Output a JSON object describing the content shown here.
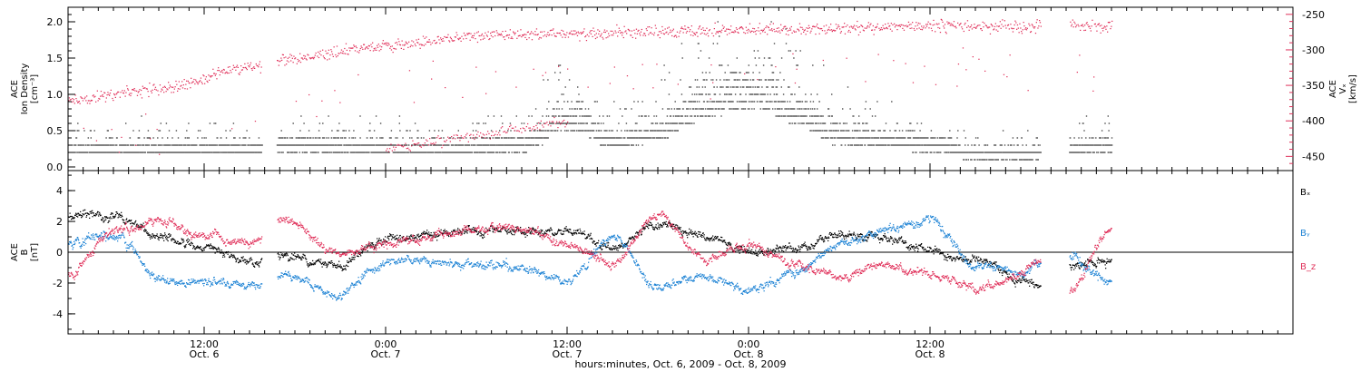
{
  "chart_data": [
    {
      "type": "scatter",
      "panel": "top",
      "ylabel": [
        "ACE",
        "Ion Density",
        "[cm⁻³]"
      ],
      "ylim": [
        -0.05,
        2.2
      ],
      "y_ticks": [
        "0.0",
        "0.5",
        "1.0",
        "1.5",
        "2.0"
      ],
      "y_tick_values": [
        0.0,
        0.5,
        1.0,
        1.5,
        2.0
      ],
      "y2label": [
        "ACE",
        "Vₓ",
        "[km/s]"
      ],
      "y2lim": [
        -470,
        -240
      ],
      "y2_ticks": [
        "-250",
        "-300",
        "-350",
        "-400",
        "-450"
      ],
      "y2_tick_values": [
        -250,
        -300,
        -350,
        -400,
        -450
      ],
      "colors": {
        "density": "#000000",
        "vx": "#e0305a"
      },
      "series": [
        {
          "key": "density",
          "axis": "left",
          "knots_hours": [
            3,
            9,
            15,
            17,
            27,
            33,
            36,
            39,
            42,
            45,
            48,
            51,
            54,
            57,
            60,
            63,
            66,
            69,
            72
          ],
          "values": [
            0.25,
            0.25,
            0.25,
            0.3,
            0.25,
            0.3,
            0.6,
            0.35,
            0.45,
            0.75,
            0.9,
            0.7,
            0.4,
            0.35,
            0.3,
            0.2,
            0.2,
            0.25,
            0.3
          ]
        },
        {
          "key": "vx",
          "axis": "right",
          "knots_hours": [
            3,
            9,
            15,
            17,
            24,
            30,
            36,
            42,
            48,
            54,
            60,
            66,
            69,
            72
          ],
          "values": [
            -370,
            -355,
            -325,
            -315,
            -295,
            -280,
            -278,
            -275,
            -272,
            -270,
            -266,
            -268,
            -265,
            -268
          ]
        }
      ],
      "gaps_hours": [
        [
          15.8,
          16.8
        ],
        [
          67.3,
          69.2
        ]
      ],
      "data_end_hours": 72.0
    },
    {
      "type": "scatter",
      "panel": "bottom",
      "ylabel": [
        "ACE",
        "B",
        "[nT]"
      ],
      "ylim": [
        -5.3,
        5.3
      ],
      "y_ticks": [
        "4",
        "2",
        "0",
        "-2",
        "-4"
      ],
      "y_tick_values": [
        4,
        2,
        0,
        -2,
        -4
      ],
      "legend": [
        "Bₓ",
        "Bᵧ",
        "B_z"
      ],
      "legend_placement": "right",
      "colors": {
        "Bx": "#000000",
        "By": "#1c82d4",
        "Bz": "#e0305a"
      },
      "series": [
        {
          "name": "Bₓ",
          "knots_hours": [
            3,
            6,
            9,
            12,
            15,
            17,
            21,
            24,
            30,
            36,
            39,
            42,
            45,
            48,
            51,
            54,
            57,
            60,
            63,
            66,
            67,
            69,
            72
          ],
          "values": [
            2.4,
            2.3,
            1.0,
            0.3,
            -0.6,
            -0.3,
            -0.8,
            0.9,
            1.4,
            1.4,
            0.2,
            1.8,
            1.0,
            0.1,
            0.2,
            1.0,
            1.0,
            0.0,
            -0.5,
            -1.8,
            -2.2,
            -0.8,
            -0.5
          ]
        },
        {
          "name": "Bᵧ",
          "knots_hours": [
            3,
            6,
            9,
            12,
            15,
            17,
            21,
            24,
            30,
            33,
            36,
            39,
            42,
            45,
            48,
            51,
            54,
            57,
            60,
            63,
            66,
            67,
            69,
            72
          ],
          "values": [
            0.5,
            1.2,
            -1.8,
            -2.0,
            -2.2,
            -1.5,
            -2.8,
            -0.6,
            -0.7,
            -1.0,
            -1.8,
            1.0,
            -2.3,
            -1.6,
            -2.5,
            -1.4,
            0.5,
            1.5,
            2.0,
            -0.8,
            -1.5,
            -0.8,
            -0.3,
            -2.0
          ]
        },
        {
          "name": "B_z",
          "knots_hours": [
            3,
            6,
            9,
            12,
            15,
            17,
            21,
            24,
            30,
            33,
            36,
            39,
            42,
            45,
            48,
            51,
            54,
            57,
            60,
            63,
            66,
            67,
            69,
            72
          ],
          "values": [
            -1.5,
            1.5,
            2.0,
            1.0,
            0.5,
            2.2,
            0.0,
            0.5,
            1.5,
            1.5,
            0.5,
            -0.8,
            2.5,
            -0.5,
            0.5,
            -0.8,
            -1.5,
            -0.8,
            -1.5,
            -2.4,
            -1.6,
            -0.5,
            -2.6,
            1.5
          ]
        }
      ],
      "gaps_hours": [
        [
          15.8,
          16.8
        ],
        [
          67.3,
          69.2
        ]
      ],
      "data_end_hours": 72.0,
      "zero_line": true
    }
  ],
  "x_axis": {
    "label": "hours:minutes, Oct.  6, 2009 - Oct.  8, 2009",
    "xlim_hours": [
      3.0,
      84.0
    ],
    "ticks": [
      {
        "hours": 12,
        "time": "12:00",
        "day": "Oct. 6"
      },
      {
        "hours": 24,
        "time": "0:00",
        "day": "Oct. 7"
      },
      {
        "hours": 36,
        "time": "12:00",
        "day": "Oct. 7"
      },
      {
        "hours": 48,
        "time": "0:00",
        "day": "Oct. 8"
      },
      {
        "hours": 60,
        "time": "12:00",
        "day": "Oct. 8"
      }
    ],
    "minor_every_hours": 1
  }
}
